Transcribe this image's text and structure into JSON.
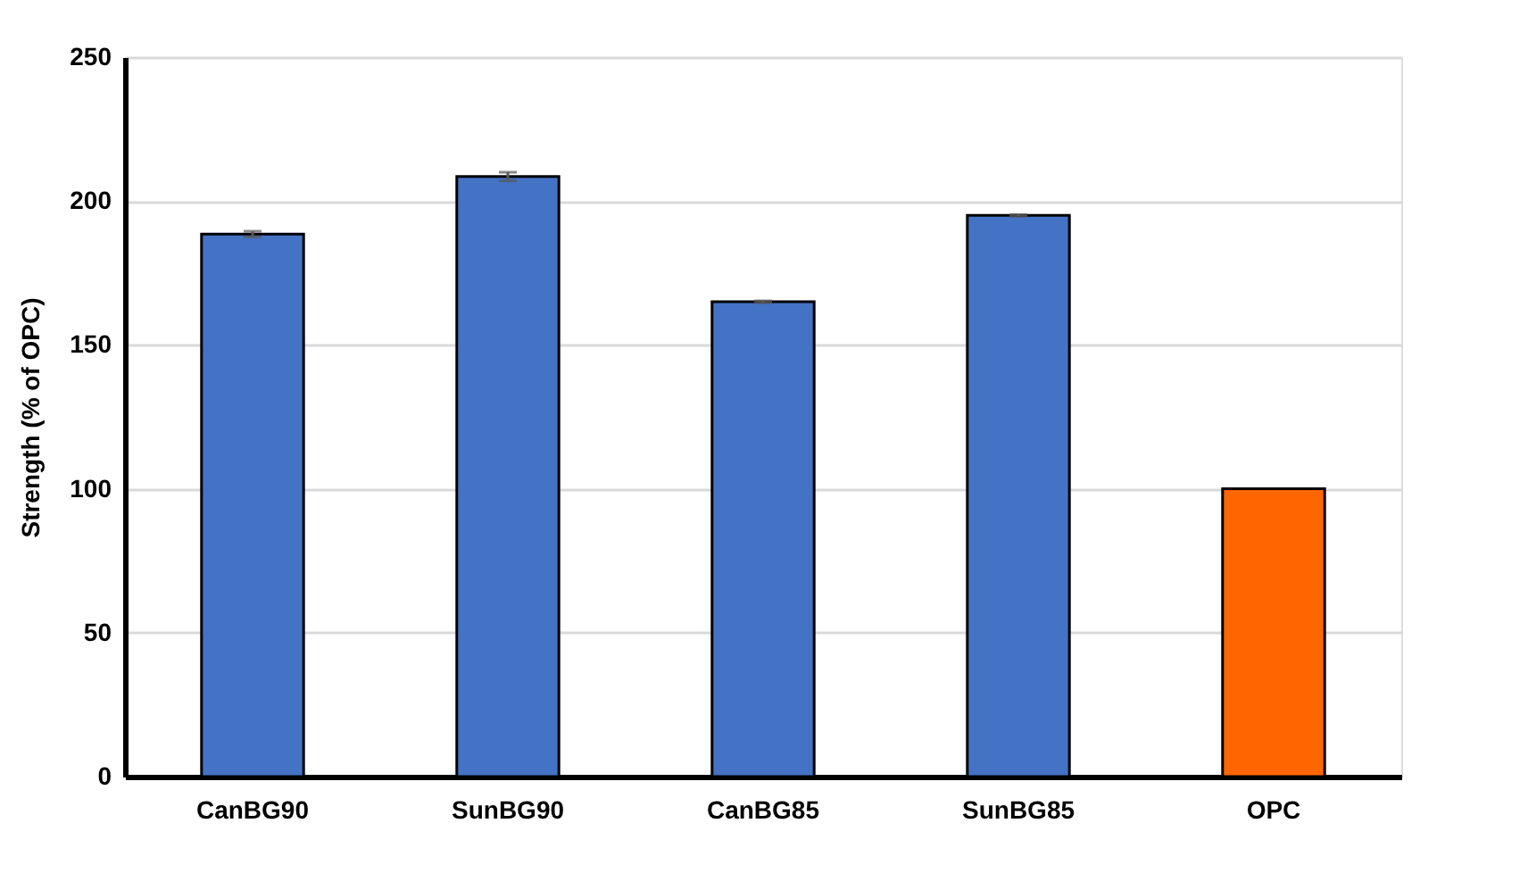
{
  "chart_data": {
    "type": "bar",
    "ylabel": "Strength (% of OPC)",
    "categories": [
      "CanBG90",
      "SunBG90",
      "CanBG85",
      "SunBG85",
      "OPC"
    ],
    "values": [
      188.5,
      208.5,
      165,
      195,
      100
    ],
    "colors": [
      "#4472c4",
      "#4472c4",
      "#4472c4",
      "#4472c4",
      "#ff6600"
    ],
    "errors": [
      1,
      1.5,
      0.3,
      0.3,
      null
    ],
    "ylim": [
      0,
      250
    ],
    "yticks": [
      0,
      50,
      100,
      150,
      200,
      250
    ],
    "grid": "y"
  }
}
